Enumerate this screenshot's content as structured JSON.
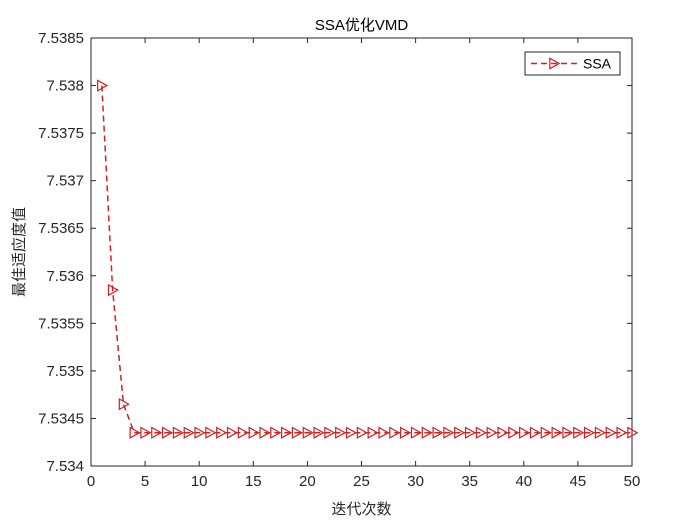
{
  "chart_data": {
    "type": "line",
    "title": "SSA优化VMD",
    "xlabel": "迭代次数",
    "ylabel": "最佳适应度值",
    "xlim": [
      0,
      50
    ],
    "ylim": [
      7.534,
      7.5385
    ],
    "xticks": [
      "0",
      "5",
      "10",
      "15",
      "20",
      "25",
      "30",
      "35",
      "40",
      "45",
      "50"
    ],
    "yticks": [
      "7.534",
      "7.5345",
      "7.535",
      "7.5355",
      "7.536",
      "7.5365",
      "7.537",
      "7.5375",
      "7.538",
      "7.5385"
    ],
    "grid": false,
    "legend_position": "top-right",
    "series": [
      {
        "name": "SSA",
        "color": "#d42020",
        "line_style": "dashed",
        "marker": "triangle-right",
        "x": [
          1,
          2,
          3,
          4,
          5,
          6,
          7,
          8,
          9,
          10,
          11,
          12,
          13,
          14,
          15,
          16,
          17,
          18,
          19,
          20,
          21,
          22,
          23,
          24,
          25,
          26,
          27,
          28,
          29,
          30,
          31,
          32,
          33,
          34,
          35,
          36,
          37,
          38,
          39,
          40,
          41,
          42,
          43,
          44,
          45,
          46,
          47,
          48,
          49,
          50
        ],
        "values": [
          7.538,
          7.53585,
          7.53465,
          7.53435,
          7.53435,
          7.53435,
          7.53435,
          7.53435,
          7.53435,
          7.53435,
          7.53435,
          7.53435,
          7.53435,
          7.53435,
          7.53435,
          7.53435,
          7.53435,
          7.53435,
          7.53435,
          7.53435,
          7.53435,
          7.53435,
          7.53435,
          7.53435,
          7.53435,
          7.53435,
          7.53435,
          7.53435,
          7.53435,
          7.53435,
          7.53435,
          7.53435,
          7.53435,
          7.53435,
          7.53435,
          7.53435,
          7.53435,
          7.53435,
          7.53435,
          7.53435,
          7.53435,
          7.53435,
          7.53435,
          7.53435,
          7.53435,
          7.53435,
          7.53435,
          7.53435,
          7.53435,
          7.53435
        ]
      }
    ]
  }
}
